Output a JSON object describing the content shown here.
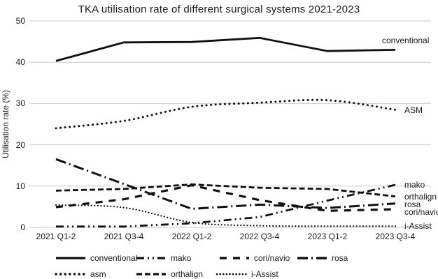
{
  "title": "TKA utilisation rate of different surgical systems 2021-2023",
  "y_axis": {
    "label": "Utilisation rate (%)",
    "tick_labels": [
      "50",
      "40",
      "30",
      "20",
      "10",
      "0"
    ]
  },
  "x_axis": {
    "tick_labels": [
      "2021 Q1-2",
      "2021 Q3-4",
      "2022 Q1-2",
      "2022 Q3-4",
      "2023 Q1-2",
      "2023 Q3-4"
    ]
  },
  "chart_data": {
    "type": "line",
    "title": "TKA utilisation rate of different surgical systems 2021-2023",
    "xlabel": "",
    "ylabel": "Utilisation rate (%)",
    "ylim": [
      0,
      50
    ],
    "yticks": [
      0,
      10,
      20,
      30,
      40,
      50
    ],
    "grid": true,
    "line_color": "#111111",
    "grid_color": "#c9c9c9",
    "categories": [
      "2021 Q1-2",
      "2021 Q3-4",
      "2022 Q1-2",
      "2022 Q3-4",
      "2023 Q1-2",
      "2023 Q3-4"
    ],
    "series": [
      {
        "name": "conventional",
        "style": "solid",
        "values": [
          40.3,
          44.8,
          44.9,
          45.9,
          42.7,
          43.0
        ]
      },
      {
        "name": "asm",
        "style": "dotted",
        "values": [
          24.0,
          25.8,
          29.2,
          30.2,
          30.8,
          28.5
        ]
      },
      {
        "name": "rosa",
        "style": "long-dash-dot",
        "values": [
          16.5,
          10.5,
          4.5,
          5.5,
          4.7,
          5.8
        ]
      },
      {
        "name": "orthalign",
        "style": "dense-dash",
        "values": [
          8.9,
          9.3,
          10.4,
          9.6,
          9.3,
          7.5
        ]
      },
      {
        "name": "cori/navio",
        "style": "sparse-dash",
        "values": [
          4.9,
          6.8,
          10.2,
          6.6,
          4.0,
          4.4
        ]
      },
      {
        "name": "i-Assist",
        "style": "fine-dotted",
        "values": [
          5.4,
          4.8,
          1.2,
          0.4,
          0.3,
          0.3
        ]
      },
      {
        "name": "mako",
        "style": "dash-dot-dot",
        "values": [
          0.2,
          0.2,
          1.0,
          2.5,
          6.5,
          10.3
        ]
      }
    ],
    "annotations": [
      {
        "label": "conventional",
        "value": 45.2
      },
      {
        "label": "ASM",
        "value": 28.3
      },
      {
        "label": "mako",
        "value": 10.2
      },
      {
        "label": "orthalign",
        "value": 7.4
      },
      {
        "label": "rosa",
        "value": 5.5
      },
      {
        "label": "cori/navio",
        "value": 3.7
      },
      {
        "label": "i-Assist",
        "value": 0.3
      }
    ],
    "legend_position": "bottom"
  },
  "legend": {
    "rows": [
      [
        {
          "label": "conventional",
          "style": "solid"
        },
        {
          "label": "mako",
          "style": "dash-dot-dot"
        },
        {
          "label": "cori/navio",
          "style": "sparse-dash"
        },
        {
          "label": "rosa",
          "style": "long-dash-dot"
        }
      ],
      [
        {
          "label": "asm",
          "style": "dotted"
        },
        {
          "label": "orthalign",
          "style": "dense-dash"
        },
        {
          "label": "i-Assist",
          "style": "fine-dotted"
        }
      ]
    ]
  }
}
